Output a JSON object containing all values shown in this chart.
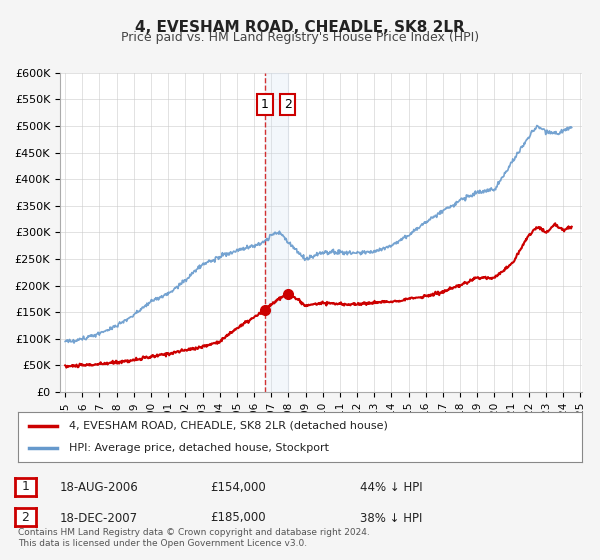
{
  "title": "4, EVESHAM ROAD, CHEADLE, SK8 2LR",
  "subtitle": "Price paid vs. HM Land Registry's House Price Index (HPI)",
  "red_label": "4, EVESHAM ROAD, CHEADLE, SK8 2LR (detached house)",
  "blue_label": "HPI: Average price, detached house, Stockport",
  "annotation1_date": "18-AUG-2006",
  "annotation1_price": "£154,000",
  "annotation1_hpi": "44% ↓ HPI",
  "annotation2_date": "18-DEC-2007",
  "annotation2_price": "£185,000",
  "annotation2_hpi": "38% ↓ HPI",
  "point1_x": 2006.63,
  "point1_y": 154000,
  "point2_x": 2007.96,
  "point2_y": 185000,
  "xmin": 1995,
  "xmax": 2025,
  "ymin": 0,
  "ymax": 600000,
  "yticks": [
    0,
    50000,
    100000,
    150000,
    200000,
    250000,
    300000,
    350000,
    400000,
    450000,
    500000,
    550000,
    600000
  ],
  "ytick_labels": [
    "£0",
    "£50K",
    "£100K",
    "£150K",
    "£200K",
    "£250K",
    "£300K",
    "£350K",
    "£400K",
    "£450K",
    "£500K",
    "£550K",
    "£600K"
  ],
  "xticks": [
    1995,
    1996,
    1997,
    1998,
    1999,
    2000,
    2001,
    2002,
    2003,
    2004,
    2005,
    2006,
    2007,
    2008,
    2009,
    2010,
    2011,
    2012,
    2013,
    2014,
    2015,
    2016,
    2017,
    2018,
    2019,
    2020,
    2021,
    2022,
    2023,
    2024,
    2025
  ],
  "red_color": "#cc0000",
  "blue_color": "#6699cc",
  "bg_color": "#f0f4f8",
  "plot_bg": "#ffffff",
  "grid_color": "#cccccc",
  "shade_color": "#d0e0f0",
  "vline_color": "#cc0000",
  "footer": "Contains HM Land Registry data © Crown copyright and database right 2024.\nThis data is licensed under the Open Government Licence v3.0."
}
